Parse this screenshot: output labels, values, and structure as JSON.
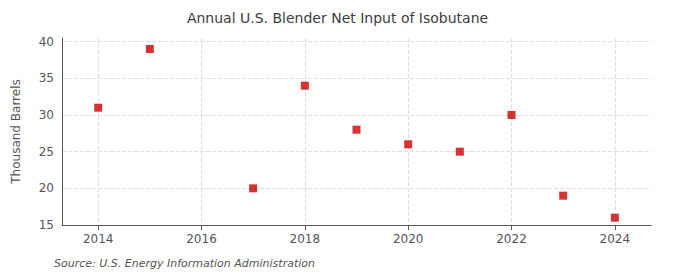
{
  "chart_data": {
    "type": "scatter",
    "title": "Annual U.S. Blender Net Input of Isobutane",
    "ylabel": "Thousand Barrels",
    "source": "Source: U.S. Energy Information Administration",
    "x": [
      2014,
      2015,
      2017,
      2018,
      2019,
      2020,
      2021,
      2022,
      2023,
      2024
    ],
    "values": [
      31,
      39,
      20,
      34,
      28,
      26,
      25,
      30,
      19,
      16
    ],
    "color": "#cc0000",
    "marker": "square",
    "xlim": [
      2013.3,
      2024.7
    ],
    "xticks": [
      2014,
      2016,
      2018,
      2020,
      2022,
      2024
    ],
    "ylim": [
      15,
      40.5
    ],
    "yticks": [
      15,
      20,
      25,
      30,
      35,
      40
    ],
    "grid": true
  }
}
